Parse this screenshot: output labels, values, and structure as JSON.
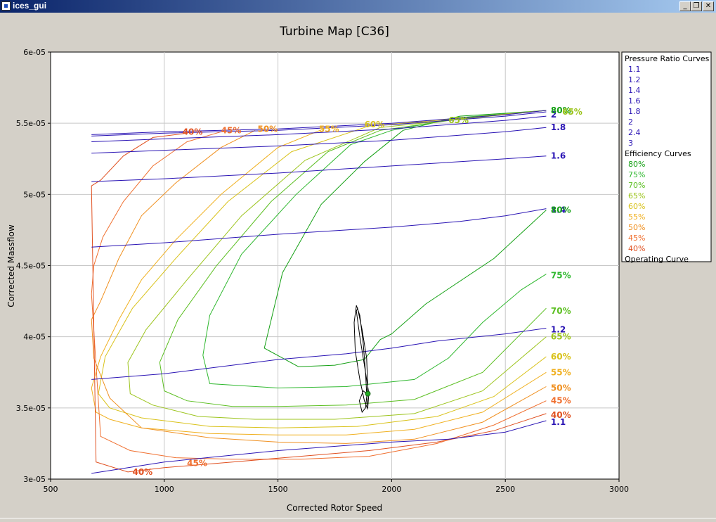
{
  "window": {
    "title": "ices_gui"
  },
  "chart_data": {
    "type": "line",
    "title": "Turbine Map [C36]",
    "xlabel": "Corrected Rotor Speed",
    "ylabel": "Corrected Massflow",
    "xlim": [
      500,
      3000
    ],
    "ylim": [
      3e-05,
      6e-05
    ],
    "xticks": [
      500,
      1000,
      1500,
      2000,
      2500,
      3000
    ],
    "xtick_labels": [
      "500",
      "1000",
      "1500",
      "2000",
      "2500",
      "3000"
    ],
    "yticks": [
      3e-05,
      3.5e-05,
      4e-05,
      4.5e-05,
      5e-05,
      5.5e-05,
      6e-05
    ],
    "ytick_labels": [
      "3e-05",
      "3.5e-05",
      "4e-05",
      "4.5e-05",
      "5e-05",
      "5.5e-05",
      "6e-05"
    ],
    "grid": true,
    "legend": {
      "position": "right",
      "pressure_header": "Pressure Ratio Curves",
      "efficiency_header": "Efficiency Curves",
      "operating_label": "Operating Curve",
      "pressure_labels": [
        "1.1",
        "1.2",
        "1.4",
        "1.6",
        "1.8",
        "2",
        "2.4",
        "3"
      ],
      "efficiency_labels": [
        "80%",
        "75%",
        "70%",
        "65%",
        "60%",
        "55%",
        "50%",
        "45%",
        "40%"
      ]
    },
    "pressure_ratio_curves": [
      {
        "name": "1.1",
        "color": "#2a14b4",
        "x": [
          680,
          1000,
          1500,
          2000,
          2250,
          2500,
          2680
        ],
        "y": [
          3.04e-05,
          3.12e-05,
          3.2e-05,
          3.26e-05,
          3.28e-05,
          3.33e-05,
          3.41e-05
        ]
      },
      {
        "name": "1.2",
        "color": "#2a14b4",
        "x": [
          680,
          1000,
          1300,
          1500,
          1800,
          2000,
          2200,
          2500,
          2680
        ],
        "y": [
          3.7e-05,
          3.74e-05,
          3.8e-05,
          3.84e-05,
          3.88e-05,
          3.92e-05,
          3.97e-05,
          4.02e-05,
          4.06e-05
        ]
      },
      {
        "name": "1.4",
        "color": "#2a14b4",
        "x": [
          680,
          1000,
          1500,
          2000,
          2300,
          2500,
          2680
        ],
        "y": [
          4.63e-05,
          4.66e-05,
          4.72e-05,
          4.77e-05,
          4.81e-05,
          4.85e-05,
          4.9e-05
        ]
      },
      {
        "name": "1.6",
        "color": "#2a14b4",
        "x": [
          680,
          1000,
          1500,
          2000,
          2500,
          2680
        ],
        "y": [
          5.09e-05,
          5.11e-05,
          5.15e-05,
          5.2e-05,
          5.25e-05,
          5.27e-05
        ]
      },
      {
        "name": "1.8",
        "color": "#2a14b4",
        "x": [
          680,
          1000,
          1500,
          2000,
          2500,
          2680
        ],
        "y": [
          5.29e-05,
          5.31e-05,
          5.34e-05,
          5.38e-05,
          5.44e-05,
          5.47e-05
        ]
      },
      {
        "name": "2",
        "color": "#2a14b4",
        "x": [
          680,
          1000,
          1500,
          2000,
          2500,
          2680
        ],
        "y": [
          5.37e-05,
          5.39e-05,
          5.42e-05,
          5.46e-05,
          5.52e-05,
          5.55e-05
        ]
      },
      {
        "name": "2.4",
        "color": "#2a14b4",
        "x": [
          680,
          1000,
          1500,
          2000,
          2500,
          2680
        ],
        "y": [
          5.41e-05,
          5.43e-05,
          5.45e-05,
          5.49e-05,
          5.55e-05,
          5.58e-05
        ]
      },
      {
        "name": "3",
        "color": "#2a14b4",
        "x": [
          680,
          1000,
          1500,
          2000,
          2500,
          2680
        ],
        "y": [
          5.42e-05,
          5.44e-05,
          5.46e-05,
          5.5e-05,
          5.56e-05,
          5.59e-05
        ]
      }
    ],
    "efficiency_curves": [
      {
        "name": "80%",
        "color": "#14a014",
        "x": [
          2680,
          2500,
          2300,
          2050,
          1880,
          1690,
          1520,
          1440,
          1590,
          1750,
          1880,
          1950,
          2000,
          2150,
          2450,
          2680
        ],
        "y": [
          5.59e-05,
          5.57e-05,
          5.55e-05,
          5.45e-05,
          5.23e-05,
          4.93e-05,
          4.45e-05,
          3.92e-05,
          3.79e-05,
          3.8e-05,
          3.84e-05,
          3.98e-05,
          4.02e-05,
          4.23e-05,
          4.55e-05,
          4.89e-05
        ]
      },
      {
        "name": "75%",
        "color": "#2fb82f",
        "x": [
          2680,
          2300,
          2000,
          1820,
          1580,
          1340,
          1200,
          1170,
          1200,
          1500,
          1800,
          2100,
          2250,
          2400,
          2570,
          2680
        ],
        "y": [
          5.59e-05,
          5.54e-05,
          5.45e-05,
          5.35e-05,
          5e-05,
          4.58e-05,
          4.15e-05,
          3.87e-05,
          3.67e-05,
          3.64e-05,
          3.65e-05,
          3.7e-05,
          3.85e-05,
          4.1e-05,
          4.33e-05,
          4.44e-05
        ]
      },
      {
        "name": "70%",
        "color": "#5cbf22",
        "x": [
          2680,
          2300,
          1950,
          1720,
          1470,
          1230,
          1060,
          980,
          1000,
          1100,
          1300,
          1500,
          1800,
          2100,
          2400,
          2680
        ],
        "y": [
          5.59e-05,
          5.53e-05,
          5.45e-05,
          5.3e-05,
          4.95e-05,
          4.5e-05,
          4.12e-05,
          3.82e-05,
          3.62e-05,
          3.55e-05,
          3.51e-05,
          3.51e-05,
          3.52e-05,
          3.56e-05,
          3.75e-05,
          4.2e-05
        ]
      },
      {
        "name": "65%",
        "color": "#9cc41c",
        "x": [
          2680,
          2250,
          1950,
          1620,
          1340,
          1100,
          920,
          840,
          850,
          950,
          1150,
          1400,
          1750,
          2100,
          2400,
          2680
        ],
        "y": [
          5.59e-05,
          5.52e-05,
          5.47e-05,
          5.24e-05,
          4.85e-05,
          4.4e-05,
          4.05e-05,
          3.82e-05,
          3.6e-05,
          3.52e-05,
          3.44e-05,
          3.42e-05,
          3.42e-05,
          3.46e-05,
          3.62e-05,
          4e-05
        ]
      },
      {
        "name": "60%",
        "color": "#d9c21a",
        "x": [
          2680,
          2200,
          1900,
          1560,
          1280,
          1050,
          860,
          740,
          710,
          760,
          900,
          1200,
          1500,
          1850,
          2200,
          2450,
          2680
        ],
        "y": [
          5.59e-05,
          5.52e-05,
          5.48e-05,
          5.3e-05,
          4.95e-05,
          4.55e-05,
          4.2e-05,
          3.86e-05,
          3.6e-05,
          3.5e-05,
          3.43e-05,
          3.37e-05,
          3.36e-05,
          3.37e-05,
          3.44e-05,
          3.58e-05,
          3.86e-05
        ]
      },
      {
        "name": "55%",
        "color": "#f0b020",
        "x": [
          1700,
          1500,
          1250,
          1050,
          900,
          800,
          720,
          680,
          700,
          760,
          900,
          1200,
          1500,
          1800,
          2100,
          2400,
          2680
        ],
        "y": [
          5.46e-05,
          5.33e-05,
          5e-05,
          4.68e-05,
          4.4e-05,
          4.12e-05,
          3.86e-05,
          3.64e-05,
          3.47e-05,
          3.42e-05,
          3.36e-05,
          3.32e-05,
          3.31e-05,
          3.31e-05,
          3.35e-05,
          3.47e-05,
          3.75e-05
        ]
      },
      {
        "name": "50%",
        "color": "#f09020",
        "x": [
          1400,
          1250,
          1050,
          900,
          800,
          720,
          680,
          690,
          760,
          900,
          1200,
          1500,
          1800,
          2100,
          2400,
          2680
        ],
        "y": [
          5.45e-05,
          5.33e-05,
          5.08e-05,
          4.85e-05,
          4.55e-05,
          4.25e-05,
          4.12e-05,
          3.85e-05,
          3.57e-05,
          3.36e-05,
          3.29e-05,
          3.26e-05,
          3.25e-05,
          3.28e-05,
          3.4e-05,
          3.65e-05
        ]
      },
      {
        "name": "45%",
        "color": "#f07030",
        "x": [
          1250,
          1100,
          950,
          820,
          730,
          690,
          680,
          720,
          850,
          1050,
          1300,
          1600,
          1900,
          2200,
          2450,
          2680
        ],
        "y": [
          5.44e-05,
          5.37e-05,
          5.2e-05,
          4.95e-05,
          4.7e-05,
          4.5e-05,
          4.3e-05,
          3.3e-05,
          3.2e-05,
          3.15e-05,
          3.14e-05,
          3.14e-05,
          3.16e-05,
          3.25e-05,
          3.38e-05,
          3.55e-05
        ]
      },
      {
        "name": "40%",
        "color": "#e05020",
        "x": [
          1100,
          950,
          820,
          720,
          680,
          700,
          840,
          1000,
          1300,
          1600,
          1900,
          2200,
          2450,
          2680
        ],
        "y": [
          5.43e-05,
          5.4e-05,
          5.27e-05,
          5.1e-05,
          5.06e-05,
          3.12e-05,
          3.05e-05,
          3.08e-05,
          3.12e-05,
          3.16e-05,
          3.2e-05,
          3.26e-05,
          3.34e-05,
          3.46e-05
        ]
      }
    ],
    "inline_labels": [
      {
        "text": "1.1",
        "color": "#2a14b4",
        "x": 2700,
        "y": 3.4e-05
      },
      {
        "text": "1.2",
        "color": "#2a14b4",
        "x": 2700,
        "y": 4.05e-05
      },
      {
        "text": "1.4",
        "color": "#2a14b4",
        "x": 2700,
        "y": 4.89e-05
      },
      {
        "text": "1.6",
        "color": "#2a14b4",
        "x": 2700,
        "y": 5.27e-05
      },
      {
        "text": "1.8",
        "color": "#2a14b4",
        "x": 2700,
        "y": 5.47e-05
      },
      {
        "text": "2",
        "color": "#2a14b4",
        "x": 2700,
        "y": 5.56e-05
      },
      {
        "text": "80%",
        "color": "#14a014",
        "x": 2700,
        "y": 4.89e-05
      },
      {
        "text": "75%",
        "color": "#2fb82f",
        "x": 2700,
        "y": 4.43e-05
      },
      {
        "text": "70%",
        "color": "#5cbf22",
        "x": 2700,
        "y": 4.18e-05
      },
      {
        "text": "65%",
        "color": "#9cc41c",
        "x": 2700,
        "y": 4e-05
      },
      {
        "text": "60%",
        "color": "#d9c21a",
        "x": 2700,
        "y": 3.86e-05
      },
      {
        "text": "55%",
        "color": "#f0b020",
        "x": 2700,
        "y": 3.75e-05
      },
      {
        "text": "50%",
        "color": "#f09020",
        "x": 2700,
        "y": 3.64e-05
      },
      {
        "text": "45%",
        "color": "#f07030",
        "x": 2700,
        "y": 3.55e-05
      },
      {
        "text": "40%",
        "color": "#e05020",
        "x": 2700,
        "y": 3.45e-05
      },
      {
        "text": "80%",
        "color": "#14a014",
        "x": 2700,
        "y": 5.59e-05
      },
      {
        "text": "65%",
        "color": "#9cc41c",
        "x": 2750,
        "y": 5.58e-05
      },
      {
        "text": "65%",
        "color": "#9cc41c",
        "x": 2250,
        "y": 5.52e-05
      },
      {
        "text": "60%",
        "color": "#d9c21a",
        "x": 1880,
        "y": 5.49e-05
      },
      {
        "text": "55%",
        "color": "#f0b020",
        "x": 1680,
        "y": 5.46e-05
      },
      {
        "text": "50%",
        "color": "#f09020",
        "x": 1410,
        "y": 5.46e-05
      },
      {
        "text": "45%",
        "color": "#f07030",
        "x": 1250,
        "y": 5.45e-05
      },
      {
        "text": "40%",
        "color": "#e05020",
        "x": 1080,
        "y": 5.44e-05
      },
      {
        "text": "40%",
        "color": "#e05020",
        "x": 860,
        "y": 3.05e-05
      },
      {
        "text": "45%",
        "color": "#f07030",
        "x": 1100,
        "y": 3.11e-05
      }
    ],
    "operating_curve": {
      "name": "Operating Curve",
      "color": "#000000",
      "x": [
        1895,
        1880,
        1860,
        1840,
        1835,
        1845,
        1860,
        1875,
        1885,
        1890,
        1895,
        1900,
        1880,
        1860,
        1845,
        1850,
        1870,
        1890,
        1895,
        1885,
        1870,
        1858,
        1875,
        1890
      ],
      "y": [
        3.49e-05,
        3.55e-05,
        3.7e-05,
        3.9e-05,
        4.1e-05,
        4.22e-05,
        4.15e-05,
        3.95e-05,
        3.75e-05,
        3.6e-05,
        3.5e-05,
        3.6e-05,
        3.8e-05,
        4e-05,
        4.18e-05,
        4.2e-05,
        4.05e-05,
        3.85e-05,
        3.65e-05,
        3.5e-05,
        3.47e-05,
        3.55e-05,
        3.62e-05,
        3.6e-05
      ]
    },
    "operating_point": {
      "x": 1895,
      "y": 3.6e-05,
      "color": "#22aa22"
    }
  }
}
